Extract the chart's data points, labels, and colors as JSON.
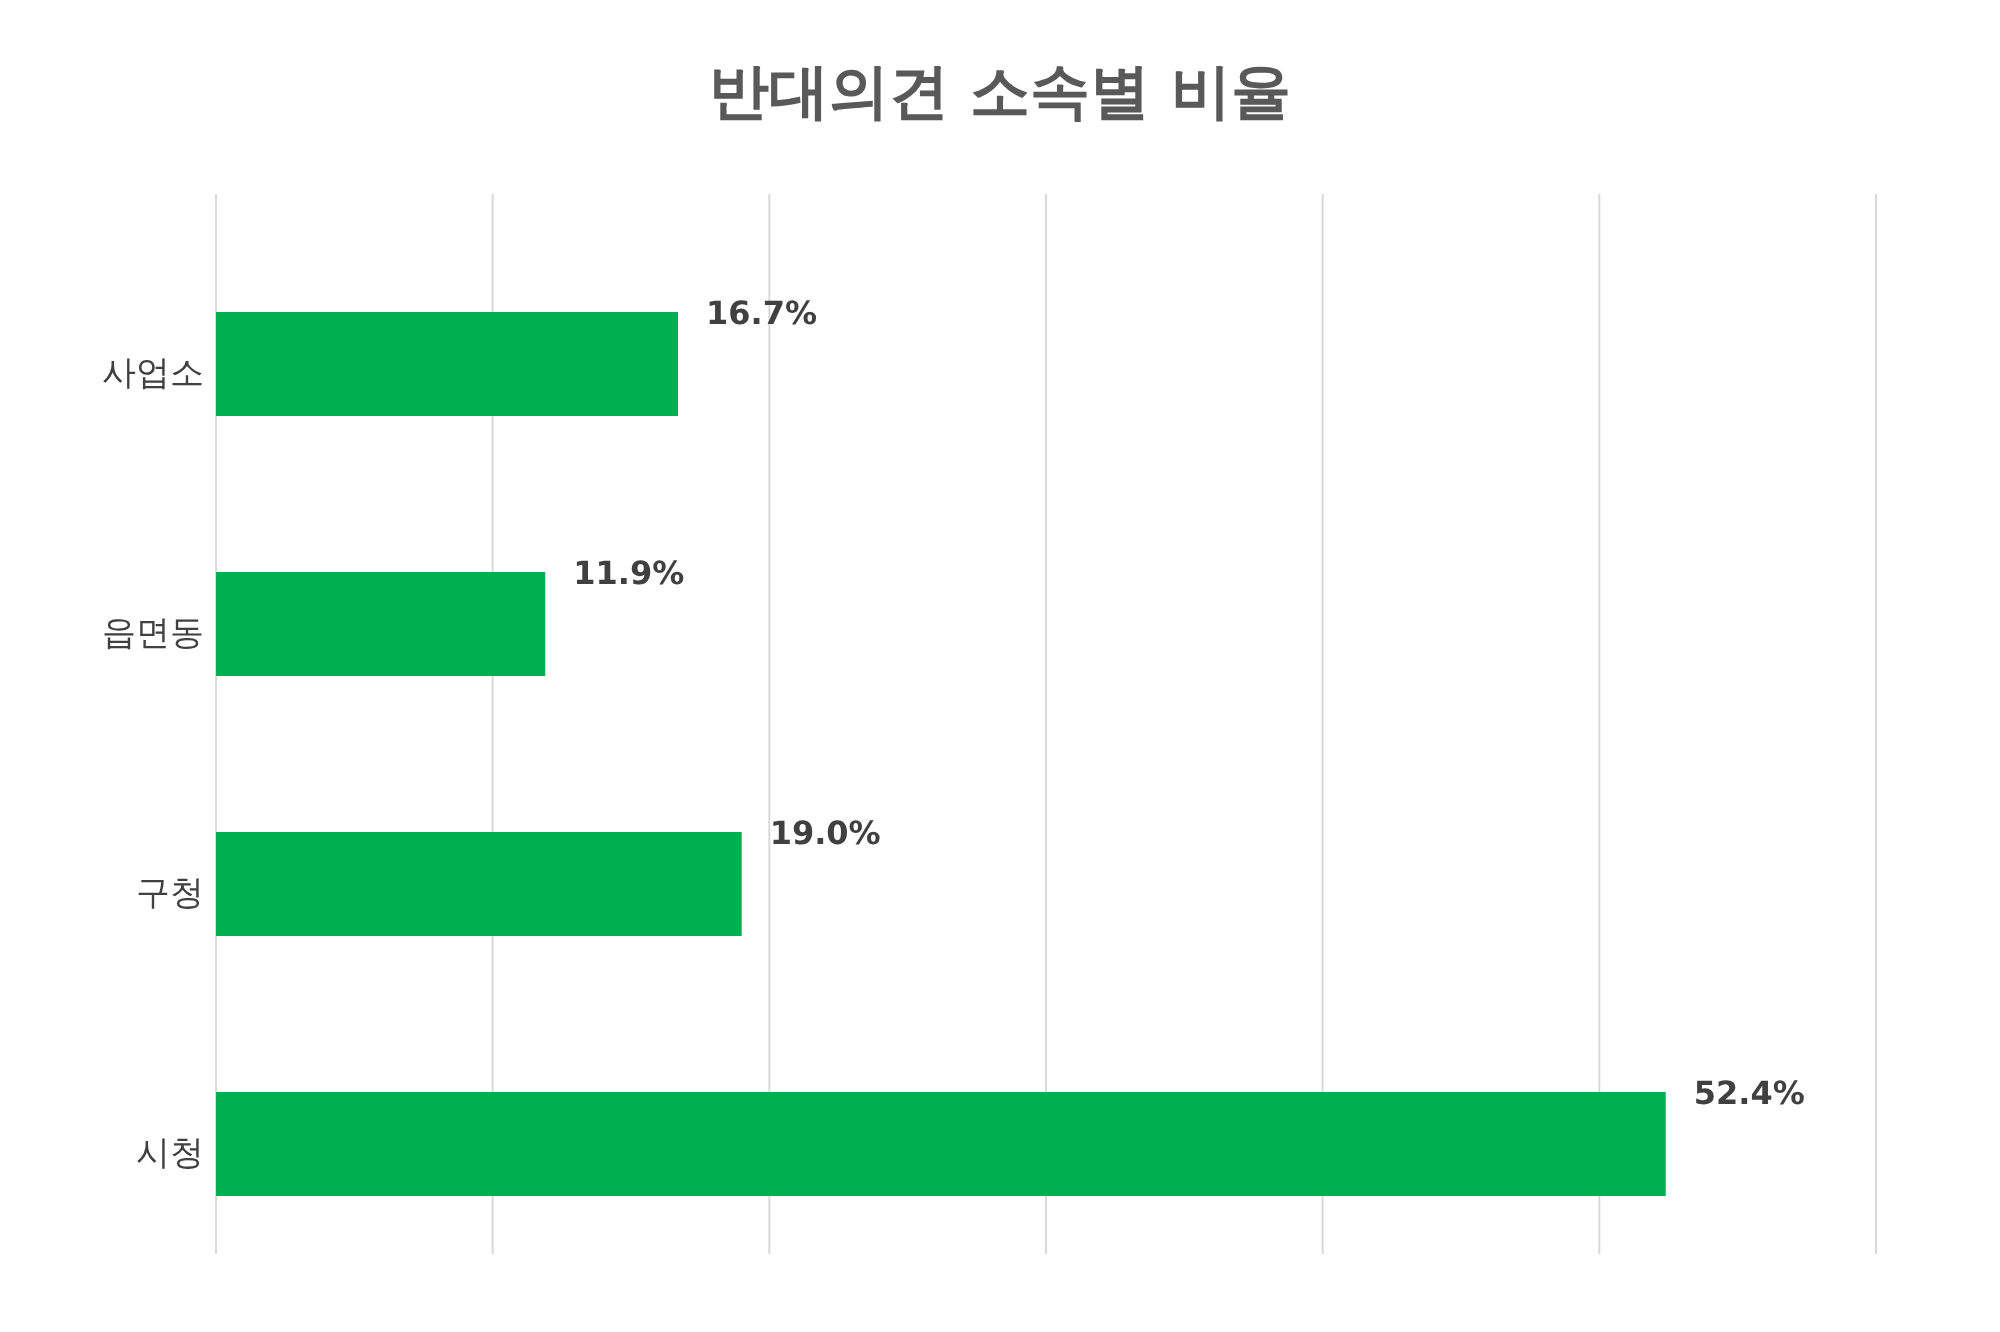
{
  "chart_data": {
    "type": "bar",
    "orientation": "horizontal",
    "title": "반대의견 소속별 비율",
    "categories": [
      "사업소",
      "읍면동",
      "구청",
      "시청"
    ],
    "values": [
      16.7,
      11.9,
      19.0,
      52.4
    ],
    "value_labels": [
      "16.7%",
      "11.9%",
      "19.0%",
      "52.4%"
    ],
    "color": "#00b050",
    "xlim": [
      0,
      60
    ],
    "xticks": [
      {
        "value": 0,
        "label": null
      },
      {
        "value": 10,
        "label": null
      },
      {
        "value": 20,
        "label": null
      },
      {
        "value": 30,
        "label": null
      },
      {
        "value": 40,
        "label": null
      },
      {
        "value": 50,
        "label": null
      },
      {
        "value": 60,
        "label": null
      }
    ],
    "grid": "x",
    "tick_labels": "y"
  }
}
